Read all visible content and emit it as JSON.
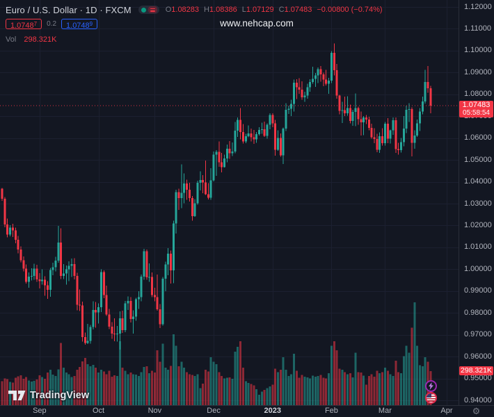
{
  "header": {
    "symbol_title": "Euro / U.S. Dollar · 1D · FXCM",
    "ohlc": {
      "o_label": "O",
      "o": "1.08283",
      "h_label": "H",
      "h": "1.08386",
      "l_label": "L",
      "l": "1.07129",
      "c_label": "C",
      "c": "1.07483",
      "change": "−0.00800 (−0.74%)"
    },
    "bid": "1.0748",
    "bid_sup": "7",
    "spread": "0.2",
    "ask": "1.0748",
    "ask_sup": "9",
    "vol_label": "Vol",
    "vol_value": "298.321K"
  },
  "watermark": "www.nehcap.com",
  "logo": {
    "text": "TradingView"
  },
  "price_badge": {
    "price": "1.07483",
    "countdown": "05:58:54"
  },
  "volume_badge": "298.321K",
  "icons": {
    "gear": "⚙"
  },
  "event_markers": [
    "economic-event-lightning",
    "us-economic-event-flag"
  ],
  "colors": {
    "background": "#131722",
    "grid": "#1c2030",
    "separator": "#2a2e39",
    "up": "#26a69a",
    "down": "#f23645",
    "volume_up": "rgba(38,166,154,0.55)",
    "volume_down": "rgba(242,54,69,0.55)",
    "axis_text": "#b2b5be",
    "muted_text": "#787b86",
    "title_text": "#d1d4dc",
    "badge_bg": "#f23645",
    "ask_accent": "#2962ff",
    "price_line": "#f23645"
  },
  "chart_data": {
    "type": "candlestick_with_volume",
    "symbol": "EURUSD",
    "timeframe": "1D",
    "exchange": "FXCM",
    "current_price": 1.07483,
    "current_volume_k": 298.321,
    "price_axis": {
      "min": 0.94,
      "max": 1.12,
      "ticks": [
        "1.12000",
        "1.11000",
        "1.10000",
        "1.09000",
        "1.08000",
        "1.07000",
        "1.06000",
        "1.05000",
        "1.04000",
        "1.03000",
        "1.02000",
        "1.01000",
        "1.00000",
        "0.99000",
        "0.98000",
        "0.97000",
        "0.96000",
        "0.95000",
        "0.94000"
      ]
    },
    "x_axis": {
      "labels": [
        {
          "label": "Sep",
          "index": 14
        },
        {
          "label": "Oct",
          "index": 36
        },
        {
          "label": "Nov",
          "index": 57
        },
        {
          "label": "Dec",
          "index": 79
        },
        {
          "label": "2023",
          "index": 101,
          "year": true
        },
        {
          "label": "Feb",
          "index": 123
        },
        {
          "label": "Mar",
          "index": 143
        },
        {
          "label": "Apr",
          "index": 166
        }
      ]
    },
    "candles_format": [
      "open",
      "high",
      "low",
      "close",
      "volume_k"
    ],
    "candles": [
      [
        1.0368,
        1.0372,
        1.0312,
        1.0322,
        210
      ],
      [
        1.0322,
        1.033,
        1.0192,
        1.0205,
        235
      ],
      [
        1.0205,
        1.0232,
        1.0145,
        1.0158,
        228
      ],
      [
        1.0158,
        1.0202,
        1.015,
        1.019,
        205
      ],
      [
        1.019,
        1.0208,
        1.0148,
        1.0178,
        198
      ],
      [
        1.0178,
        1.019,
        1.0118,
        1.0135,
        240
      ],
      [
        1.0135,
        1.0152,
        1.0072,
        1.009,
        252
      ],
      [
        1.009,
        1.0105,
        1.0032,
        1.0041,
        262
      ],
      [
        1.0041,
        1.0058,
        0.999,
        1.0002,
        230
      ],
      [
        1.0002,
        1.0021,
        0.9935,
        0.9943,
        248
      ],
      [
        0.9943,
        0.9985,
        0.9915,
        0.9966,
        215
      ],
      [
        0.9966,
        1.0004,
        0.9948,
        0.997,
        208
      ],
      [
        0.997,
        1.0025,
        0.9952,
        1.0002,
        212
      ],
      [
        1.0002,
        1.002,
        0.9942,
        0.9954,
        226
      ],
      [
        0.9954,
        0.9982,
        0.9912,
        0.9946,
        262
      ],
      [
        0.9946,
        1.0,
        0.993,
        0.9952,
        248
      ],
      [
        0.9952,
        0.9968,
        0.9878,
        0.9926,
        230
      ],
      [
        0.9926,
        0.9946,
        0.9864,
        0.9905,
        285
      ],
      [
        0.9905,
        1.0006,
        0.9874,
        0.9997,
        310
      ],
      [
        0.9997,
        1.0029,
        0.9972,
        1.0009,
        268
      ],
      [
        1.0009,
        1.0056,
        0.999,
        1.004,
        255
      ],
      [
        1.004,
        1.0198,
        1.003,
        1.0122,
        315
      ],
      [
        1.0122,
        1.0187,
        0.9955,
        0.997,
        545
      ],
      [
        0.997,
        1.0023,
        0.9955,
        0.9981,
        330
      ],
      [
        0.9981,
        1.0017,
        0.993,
        0.9999,
        285
      ],
      [
        0.9999,
        1.0036,
        0.9945,
        1.0016,
        270
      ],
      [
        1.0016,
        1.0049,
        0.9964,
        1.0023,
        248
      ],
      [
        1.0023,
        1.0051,
        0.9954,
        0.997,
        255
      ],
      [
        0.997,
        0.9983,
        0.9812,
        0.9838,
        310
      ],
      [
        0.9838,
        0.9907,
        0.9808,
        0.9834,
        335
      ],
      [
        0.9834,
        0.9852,
        0.9668,
        0.969,
        385
      ],
      [
        0.969,
        0.971,
        0.9655,
        0.9662,
        415
      ],
      [
        0.9662,
        0.975,
        0.9658,
        0.9672,
        360
      ],
      [
        0.9672,
        0.9745,
        0.966,
        0.9735,
        340
      ],
      [
        0.9735,
        0.9853,
        0.9725,
        0.9813,
        352
      ],
      [
        0.9813,
        0.985,
        0.9733,
        0.9802,
        330
      ],
      [
        0.9802,
        0.9844,
        0.9752,
        0.9826,
        285
      ],
      [
        0.9826,
        0.9999,
        0.9804,
        0.9986,
        310
      ],
      [
        0.9986,
        0.9995,
        0.9868,
        0.9882,
        295
      ],
      [
        0.9882,
        0.9925,
        0.9787,
        0.9793,
        270
      ],
      [
        0.9793,
        0.9818,
        0.9726,
        0.9737,
        302
      ],
      [
        0.9737,
        0.9758,
        0.9682,
        0.9705,
        250
      ],
      [
        0.9705,
        0.9776,
        0.967,
        0.9702,
        262
      ],
      [
        0.9702,
        0.974,
        0.9668,
        0.9706,
        255
      ],
      [
        0.9706,
        0.9807,
        0.9632,
        0.9775,
        560
      ],
      [
        0.9775,
        0.981,
        0.9709,
        0.9721,
        330
      ],
      [
        0.9721,
        0.9854,
        0.9712,
        0.9843,
        302
      ],
      [
        0.9843,
        0.9876,
        0.9813,
        0.9855,
        272
      ],
      [
        0.9855,
        0.9872,
        0.9756,
        0.9772,
        285
      ],
      [
        0.9772,
        0.9812,
        0.9705,
        0.9784,
        270
      ],
      [
        0.9784,
        0.9869,
        0.9764,
        0.9863,
        268
      ],
      [
        0.9863,
        0.9899,
        0.9819,
        0.9872,
        255
      ],
      [
        0.9872,
        0.9976,
        0.9853,
        0.9966,
        290
      ],
      [
        0.9966,
        1.0094,
        0.9952,
        1.0082,
        335
      ],
      [
        1.0082,
        1.009,
        0.9951,
        0.9963,
        340
      ],
      [
        0.9963,
        1.0026,
        0.9942,
        0.9965,
        280
      ],
      [
        0.9965,
        0.9985,
        0.9872,
        0.9882,
        300
      ],
      [
        0.9882,
        0.9915,
        0.9853,
        0.9873,
        285
      ],
      [
        0.9873,
        0.9976,
        0.981,
        0.9817,
        480
      ],
      [
        0.9817,
        0.984,
        0.973,
        0.9748,
        380
      ],
      [
        0.9748,
        0.9965,
        0.9742,
        0.9957,
        540
      ],
      [
        0.9957,
        1.0034,
        0.9899,
        1.0021,
        330
      ],
      [
        1.0021,
        1.0096,
        0.9972,
        1.0071,
        310
      ],
      [
        1.0071,
        1.0085,
        0.9935,
        0.9995,
        345
      ],
      [
        0.9995,
        1.0222,
        0.9936,
        1.0209,
        620
      ],
      [
        1.0209,
        1.0364,
        1.0163,
        1.0353,
        520
      ],
      [
        1.0353,
        1.0368,
        1.0271,
        1.0325,
        340
      ],
      [
        1.0325,
        1.048,
        1.028,
        1.035,
        380
      ],
      [
        1.035,
        1.0438,
        1.0302,
        1.0393,
        330
      ],
      [
        1.0393,
        1.041,
        1.0318,
        1.0363,
        290
      ],
      [
        1.0363,
        1.0395,
        1.031,
        1.0325,
        270
      ],
      [
        1.0325,
        1.0335,
        1.0222,
        1.0243,
        265
      ],
      [
        1.0243,
        1.032,
        1.024,
        1.0302,
        255
      ],
      [
        1.0302,
        1.0405,
        1.0296,
        1.0395,
        270
      ],
      [
        1.0395,
        1.0448,
        1.036,
        1.0408,
        150
      ],
      [
        1.0408,
        1.043,
        1.0347,
        1.0397,
        190
      ],
      [
        1.0397,
        1.0497,
        1.034,
        1.0343,
        310
      ],
      [
        1.0343,
        1.0394,
        1.0319,
        1.0327,
        295
      ],
      [
        1.0327,
        1.0463,
        1.0318,
        1.0406,
        420
      ],
      [
        1.0406,
        1.0539,
        1.0402,
        1.0525,
        380
      ],
      [
        1.0525,
        1.0545,
        1.0428,
        1.0537,
        360
      ],
      [
        1.0537,
        1.0585,
        1.0468,
        1.049,
        290
      ],
      [
        1.049,
        1.0532,
        1.0443,
        1.0467,
        255
      ],
      [
        1.0467,
        1.0524,
        1.0465,
        1.0507,
        235
      ],
      [
        1.0507,
        1.057,
        1.0489,
        1.0551,
        240
      ],
      [
        1.0551,
        1.0587,
        1.0505,
        1.053,
        245
      ],
      [
        1.053,
        1.058,
        1.0518,
        1.0539,
        230
      ],
      [
        1.0539,
        1.0673,
        1.053,
        1.0634,
        470
      ],
      [
        1.0634,
        1.0695,
        1.0605,
        1.0683,
        510
      ],
      [
        1.0683,
        1.0737,
        1.0594,
        1.0627,
        560
      ],
      [
        1.0627,
        1.0664,
        1.0575,
        1.0585,
        330
      ],
      [
        1.0585,
        1.062,
        1.0576,
        1.0609,
        210
      ],
      [
        1.0609,
        1.0658,
        1.0603,
        1.0622,
        195
      ],
      [
        1.0622,
        1.0644,
        1.0585,
        1.0604,
        185
      ],
      [
        1.0604,
        1.0637,
        1.0573,
        1.0594,
        175
      ],
      [
        1.0594,
        1.0628,
        1.0578,
        1.0618,
        140
      ],
      [
        1.0618,
        1.065,
        1.0611,
        1.0637,
        90
      ],
      [
        1.0637,
        1.067,
        1.062,
        1.0641,
        120
      ],
      [
        1.0641,
        1.0675,
        1.0605,
        1.061,
        135
      ],
      [
        1.061,
        1.0668,
        1.0598,
        1.0661,
        150
      ],
      [
        1.0661,
        1.0714,
        1.064,
        1.0705,
        165
      ],
      [
        1.0705,
        1.0713,
        1.065,
        1.0668,
        180
      ],
      [
        1.0668,
        1.0683,
        1.0519,
        1.0546,
        320
      ],
      [
        1.0546,
        1.0635,
        1.0542,
        1.0601,
        290
      ],
      [
        1.0601,
        1.0621,
        1.0515,
        1.0521,
        310
      ],
      [
        1.0521,
        1.0648,
        1.0482,
        1.0643,
        420
      ],
      [
        1.0643,
        1.076,
        1.0633,
        1.073,
        310
      ],
      [
        1.073,
        1.0748,
        1.0711,
        1.0734,
        255
      ],
      [
        1.0734,
        1.0776,
        1.07,
        1.0756,
        270
      ],
      [
        1.0756,
        1.0868,
        1.0722,
        1.0853,
        450
      ],
      [
        1.0853,
        1.087,
        1.0778,
        1.0832,
        300
      ],
      [
        1.0832,
        1.0874,
        1.0802,
        1.0822,
        240
      ],
      [
        1.0822,
        1.086,
        1.0775,
        1.0786,
        265
      ],
      [
        1.0786,
        1.0812,
        1.0766,
        1.0794,
        250
      ],
      [
        1.0794,
        1.0848,
        1.078,
        1.0832,
        245
      ],
      [
        1.0832,
        1.087,
        1.0812,
        1.0856,
        235
      ],
      [
        1.0856,
        1.0927,
        1.0848,
        1.0871,
        260
      ],
      [
        1.0871,
        1.0898,
        1.0835,
        1.0887,
        250
      ],
      [
        1.0887,
        1.0924,
        1.0852,
        1.0916,
        255
      ],
      [
        1.0916,
        1.0929,
        1.0858,
        1.0892,
        265
      ],
      [
        1.0892,
        1.09,
        1.0838,
        1.0868,
        240
      ],
      [
        1.0868,
        1.0913,
        1.084,
        1.0849,
        235
      ],
      [
        1.0849,
        1.0875,
        1.0802,
        1.0863,
        280
      ],
      [
        1.0863,
        1.0998,
        1.0852,
        1.099,
        520
      ],
      [
        1.099,
        1.1033,
        1.0886,
        1.0911,
        560
      ],
      [
        1.0911,
        1.094,
        1.078,
        1.0794,
        480
      ],
      [
        1.0794,
        1.0798,
        1.0709,
        1.0725,
        320
      ],
      [
        1.0725,
        1.0766,
        1.0669,
        1.0727,
        310
      ],
      [
        1.0727,
        1.079,
        1.07,
        1.0713,
        290
      ],
      [
        1.0713,
        1.0791,
        1.0702,
        1.0738,
        270
      ],
      [
        1.0738,
        1.0753,
        1.0668,
        1.0679,
        280
      ],
      [
        1.0679,
        1.0729,
        1.0656,
        1.072,
        245
      ],
      [
        1.072,
        1.0804,
        1.0655,
        1.0737,
        460
      ],
      [
        1.0737,
        1.0744,
        1.0661,
        1.0687,
        290
      ],
      [
        1.0687,
        1.0721,
        1.0612,
        1.0672,
        285
      ],
      [
        1.0672,
        1.07,
        1.0613,
        1.0695,
        260
      ],
      [
        1.0695,
        1.0705,
        1.0664,
        1.0685,
        180
      ],
      [
        1.0685,
        1.0698,
        1.0636,
        1.0647,
        255
      ],
      [
        1.0647,
        1.0665,
        1.0598,
        1.0604,
        270
      ],
      [
        1.0604,
        1.0645,
        1.0577,
        1.0595,
        250
      ],
      [
        1.0595,
        1.0619,
        1.0536,
        1.0546,
        300
      ],
      [
        1.0546,
        1.0626,
        1.0532,
        1.0609,
        280
      ],
      [
        1.0609,
        1.0645,
        1.0565,
        1.0577,
        290
      ],
      [
        1.0577,
        1.0673,
        1.0565,
        1.0665,
        330
      ],
      [
        1.0665,
        1.0691,
        1.0577,
        1.0597,
        300
      ],
      [
        1.0597,
        1.0638,
        1.0575,
        1.0636,
        270
      ],
      [
        1.0636,
        1.0694,
        1.0615,
        1.0681,
        255
      ],
      [
        1.0681,
        1.0695,
        1.0532,
        1.0549,
        390
      ],
      [
        1.0549,
        1.0578,
        1.0524,
        1.0545,
        290
      ],
      [
        1.0545,
        1.06,
        1.0533,
        1.0582,
        280
      ],
      [
        1.0582,
        1.0701,
        1.0563,
        1.0643,
        430
      ],
      [
        1.0643,
        1.0749,
        1.0622,
        1.0729,
        520
      ],
      [
        1.0729,
        1.076,
        1.0674,
        1.0733,
        460
      ],
      [
        1.0733,
        1.074,
        1.0516,
        1.0578,
        680
      ],
      [
        1.0578,
        1.0635,
        1.0551,
        1.0611,
        901
      ],
      [
        1.0611,
        1.0685,
        1.0605,
        1.0667,
        520
      ],
      [
        1.0667,
        1.0738,
        1.0632,
        1.0721,
        350
      ],
      [
        1.0721,
        1.0789,
        1.0709,
        1.0767,
        340
      ],
      [
        1.0767,
        1.0912,
        1.0758,
        1.0857,
        420
      ],
      [
        1.0857,
        1.093,
        1.0807,
        1.0828,
        380
      ],
      [
        1.08283,
        1.08386,
        1.07129,
        1.07483,
        298.321
      ]
    ]
  }
}
